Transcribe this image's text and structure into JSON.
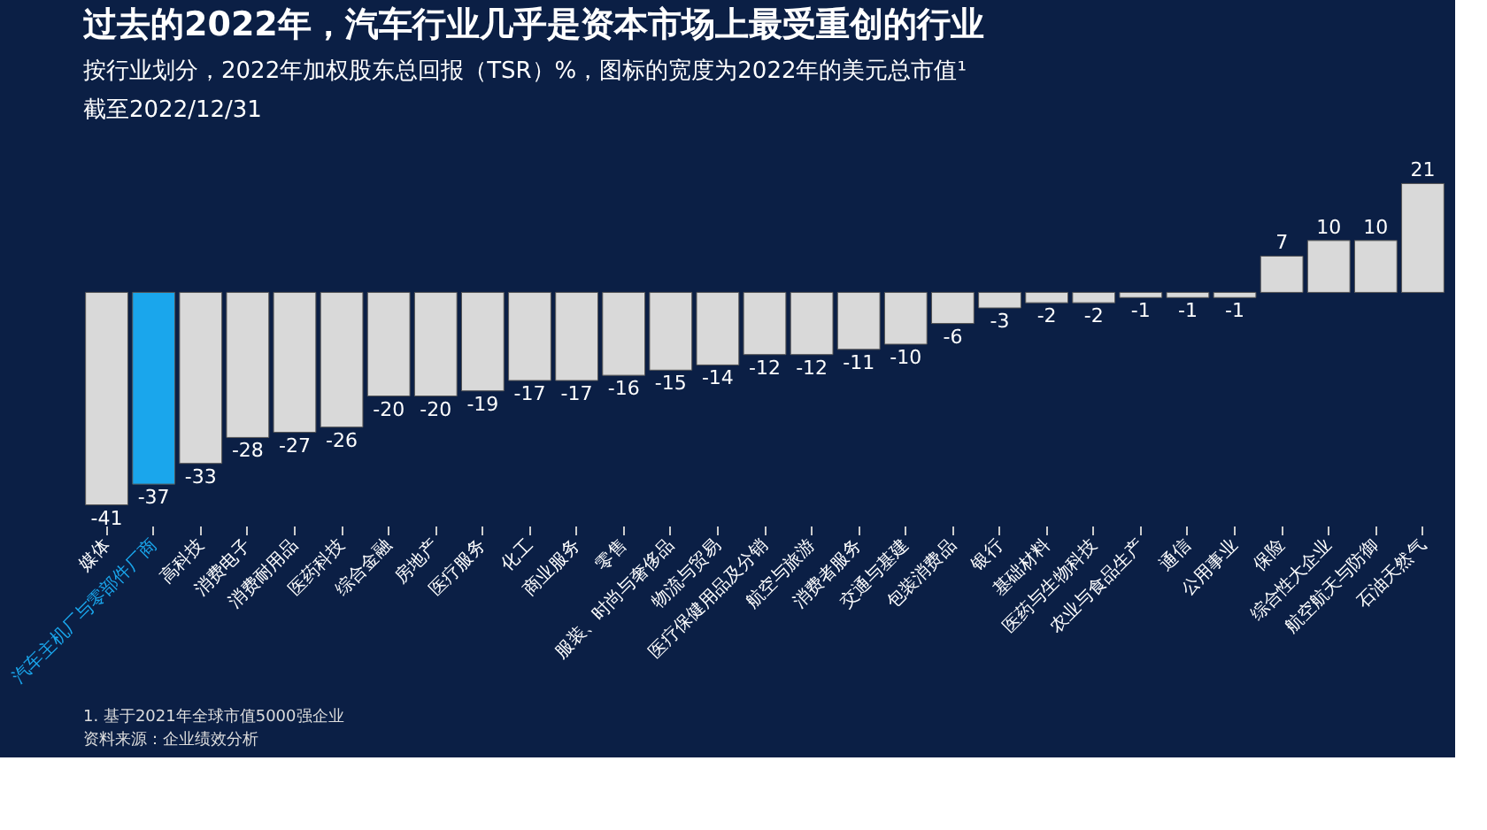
{
  "chart_data": {
    "type": "bar",
    "title": "过去的2022年，汽车行业几乎是资本市场上最受重创的行业",
    "subtitle": "按行业划分，2022年加权股东总回报（TSR）%，图标的宽度为2022年的美元总市值¹",
    "annotations": [
      "截至2022/12/31",
      "1. 基于2021年全球市值5000强企业",
      "资料来源：企业绩效分析"
    ],
    "categories": [
      "媒体",
      "汽车主机厂与零部件厂商",
      "高科技",
      "消费电子",
      "消费耐用品",
      "医药科技",
      "综合金融",
      "房地产",
      "医疗服务",
      "化工",
      "商业服务",
      "零售",
      "服装、时尚与奢侈品",
      "物流与贸易",
      "医疗保健用品及分销",
      "航空与旅游",
      "消费者服务",
      "交通与基建",
      "包装消费品",
      "银行",
      "基础材料",
      "医药与生物科技",
      "农业与食品生产",
      "通信",
      "公用事业",
      "保险",
      "综合性大企业",
      "航空航天与防御",
      "石油天然气"
    ],
    "values": [
      -41,
      -37,
      -33,
      -28,
      -27,
      -26,
      -20,
      -20,
      -19,
      -17,
      -17,
      -16,
      -15,
      -14,
      -12,
      -12,
      -11,
      -10,
      -6,
      -3,
      -2,
      -2,
      -1,
      -1,
      -1,
      7,
      10,
      10,
      21
    ],
    "colors": [
      "#d9d9d9",
      "#1aa6ec",
      "#d9d9d9",
      "#d9d9d9",
      "#d9d9d9",
      "#d9d9d9",
      "#d9d9d9",
      "#d9d9d9",
      "#d9d9d9",
      "#d9d9d9",
      "#d9d9d9",
      "#d9d9d9",
      "#d9d9d9",
      "#d9d9d9",
      "#d9d9d9",
      "#d9d9d9",
      "#d9d9d9",
      "#d9d9d9",
      "#d9d9d9",
      "#d9d9d9",
      "#d9d9d9",
      "#d9d9d9",
      "#d9d9d9",
      "#d9d9d9",
      "#d9d9d9",
      "#d9d9d9",
      "#d9d9d9",
      "#d9d9d9",
      "#d9d9d9"
    ],
    "data_labels": true,
    "grid": false
  }
}
